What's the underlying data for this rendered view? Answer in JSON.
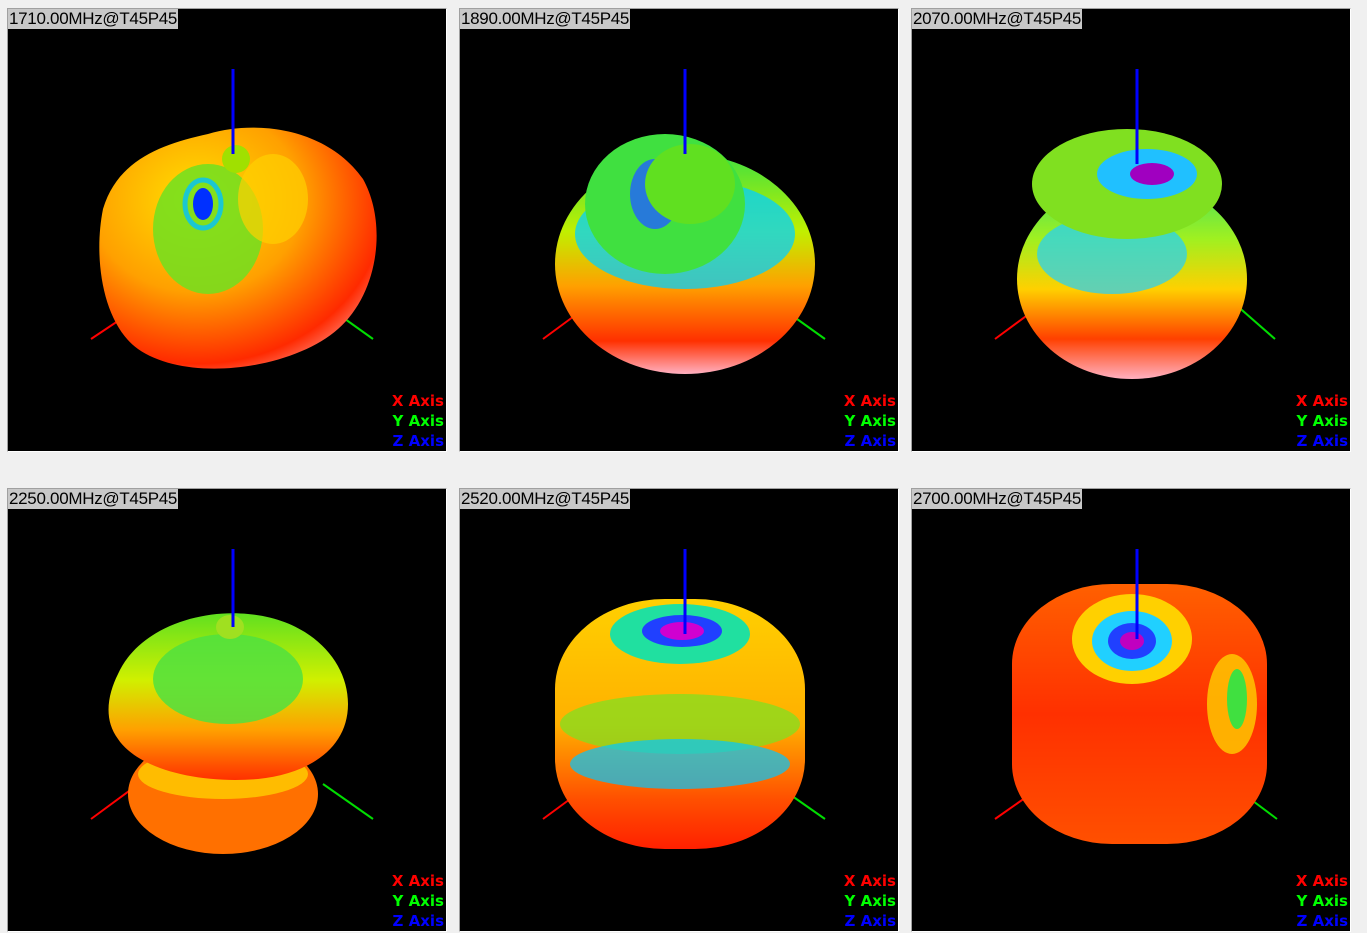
{
  "panels": [
    {
      "title": "1710.00MHz@T45P45",
      "variant": 0
    },
    {
      "title": "1890.00MHz@T45P45",
      "variant": 1
    },
    {
      "title": "2070.00MHz@T45P45",
      "variant": 2
    },
    {
      "title": "2250.00MHz@T45P45",
      "variant": 3
    },
    {
      "title": "2520.00MHz@T45P45",
      "variant": 4
    },
    {
      "title": "2700.00MHz@T45P45",
      "variant": 5
    }
  ],
  "legend": {
    "x": {
      "label": "X Axis",
      "color": "#ff0000"
    },
    "y": {
      "label": "Y Axis",
      "color": "#00ff00"
    },
    "z": {
      "label": "Z Axis",
      "color": "#0000ff"
    }
  },
  "colors": {
    "panel_background": "#000000",
    "title_background": "#c8c8c8",
    "window_background": "#f0f0f0"
  }
}
